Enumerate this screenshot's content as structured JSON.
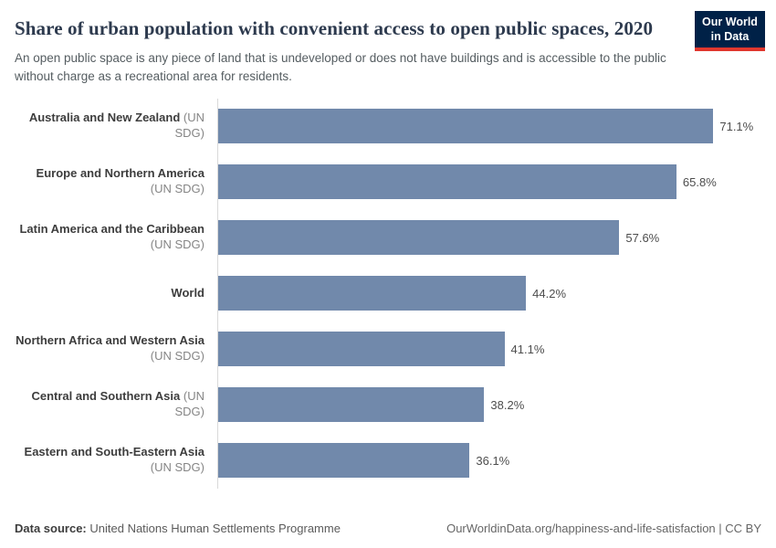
{
  "header": {
    "title": "Share of urban population with convenient access to open public spaces, 2020",
    "subtitle": "An open public space is any piece of land that is undeveloped or does not have buildings and is accessible to the public without charge as a recreational area for residents."
  },
  "logo": {
    "line1": "Our World",
    "line2": "in Data"
  },
  "colors": {
    "bar": "#7189ab",
    "logo_bg": "#002147",
    "logo_accent": "#e0372e",
    "axis_line": "#d9d9d9"
  },
  "chart_data": {
    "type": "bar",
    "orientation": "horizontal",
    "title": "Share of urban population with convenient access to open public spaces, 2020",
    "categories": [
      "Australia and New Zealand (UN SDG)",
      "Europe and Northern America (UN SDG)",
      "Latin America and the Caribbean (UN SDG)",
      "World",
      "Northern Africa and Western Asia (UN SDG)",
      "Central and Southern Asia (UN SDG)",
      "Eastern and South-Eastern Asia (UN SDG)"
    ],
    "values": [
      71.1,
      65.8,
      57.6,
      44.2,
      41.1,
      38.2,
      36.1
    ],
    "value_labels": [
      "71.1%",
      "65.8%",
      "57.6%",
      "44.2%",
      "41.1%",
      "38.2%",
      "36.1%"
    ],
    "xlabel": "",
    "ylabel": "",
    "xmax": 78,
    "grid": false,
    "legend": false
  },
  "rows": [
    {
      "name": "Australia and New Zealand",
      "qualifier": "(UN SDG)"
    },
    {
      "name": "Europe and Northern America",
      "qualifier": "(UN SDG)"
    },
    {
      "name": "Latin America and the Caribbean",
      "qualifier": "(UN SDG)"
    },
    {
      "name": "World",
      "qualifier": ""
    },
    {
      "name": "Northern Africa and Western Asia",
      "qualifier": "(UN SDG)"
    },
    {
      "name": "Central and Southern Asia",
      "qualifier": "(UN SDG)"
    },
    {
      "name": "Eastern and South-Eastern Asia",
      "qualifier": "(UN SDG)"
    }
  ],
  "footer": {
    "source_label": "Data source:",
    "source_text": "United Nations Human Settlements Programme",
    "right_text": "OurWorldinData.org/happiness-and-life-satisfaction | CC BY"
  }
}
